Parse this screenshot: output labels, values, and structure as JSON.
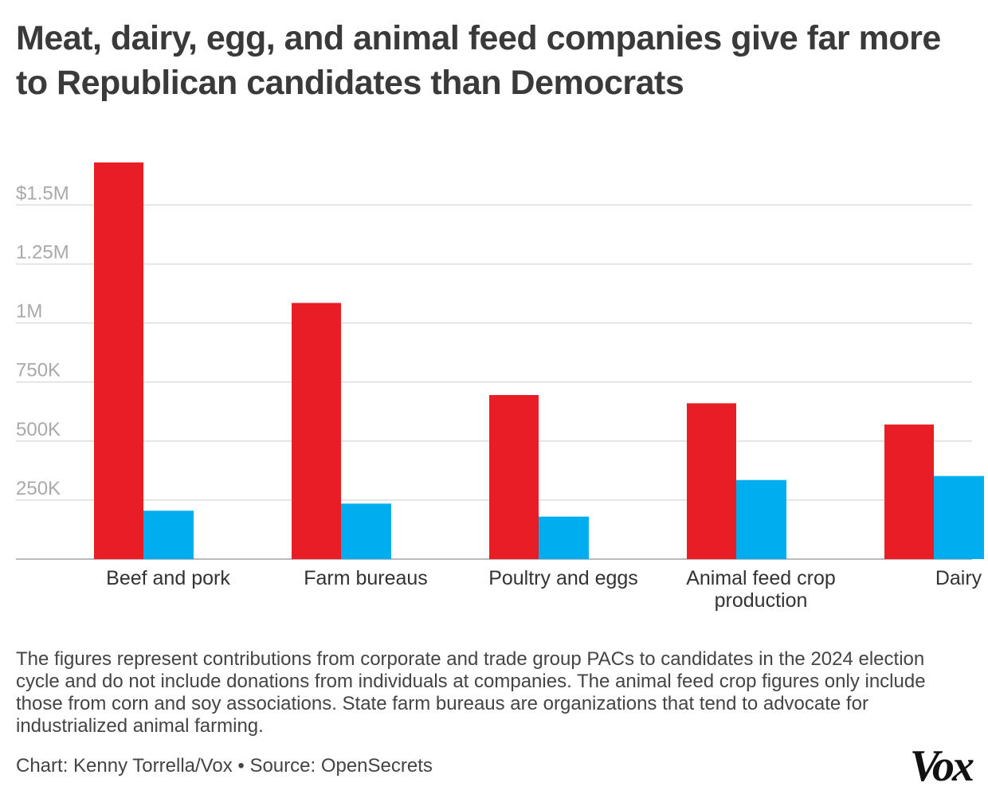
{
  "title": "Meat, dairy, egg, and animal feed companies give far more to Republican candidates than Democrats",
  "note": "The figures represent contributions from corporate and trade group PACs to candidates in the 2024 election cycle and do not include donations from individuals at companies. The animal feed crop figures only include those from corn and soy associations. State farm bureaus are organizations that tend to advocate for industrialized animal farming.",
  "credit": "Chart: Kenny Torrella/Vox • Source: OpenSecrets",
  "logo": "Vox",
  "colors": {
    "republican": "#e81d25",
    "democrat": "#00aeef",
    "grid": "#dddddd",
    "baseline": "#bbbbbb"
  },
  "chart_data": {
    "type": "bar",
    "categories": [
      [
        "Beef and pork"
      ],
      [
        "Farm bureaus"
      ],
      [
        "Poultry and eggs"
      ],
      [
        "Animal feed crop",
        "production"
      ],
      [
        "Dairy"
      ]
    ],
    "series": [
      {
        "color": "#e81d25",
        "values": [
          1680000,
          1085000,
          695000,
          660000,
          570000
        ]
      },
      {
        "color": "#00aeef",
        "values": [
          205000,
          235000,
          180000,
          335000,
          352000
        ]
      }
    ],
    "ylim": [
      0,
      1680000
    ],
    "yticks": [
      {
        "value": 250000,
        "label": "250K"
      },
      {
        "value": 500000,
        "label": "500K"
      },
      {
        "value": 750000,
        "label": "750K"
      },
      {
        "value": 1000000,
        "label": "1M"
      },
      {
        "value": 1250000,
        "label": "1.25M"
      },
      {
        "value": 1500000,
        "label": "$1.5M"
      }
    ],
    "grid": true
  }
}
